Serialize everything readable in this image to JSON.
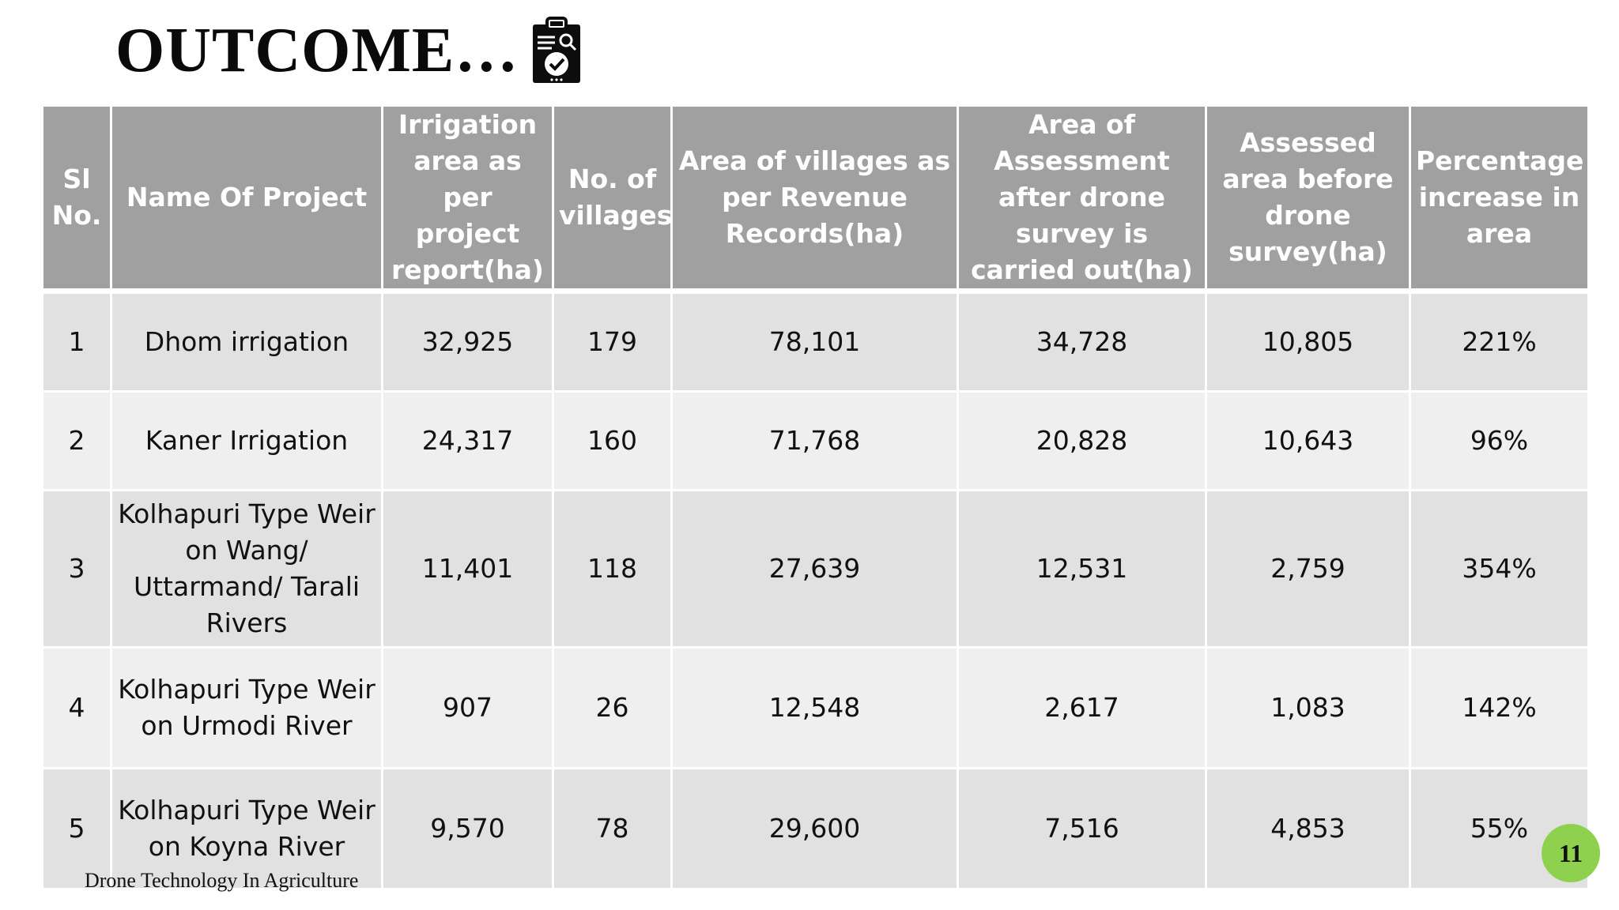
{
  "slide": {
    "title": "OUTCOME…",
    "title_icon": "clipboard-check-icon",
    "footer": "Drone Technology In Agriculture",
    "page_number": "11",
    "page_badge_color": "#8fd14f"
  },
  "table": {
    "header_color": "#a0a0a0",
    "headers": [
      "Sl No.",
      "Name Of Project",
      "Irrigation area as per project report(ha)",
      "No. of villages",
      "Area of villages as per Revenue Records(ha)",
      "Area of Assessment after drone survey is carried out(ha)",
      "Assessed area before drone survey(ha)",
      "Percentage increase in area"
    ],
    "rows": [
      [
        "1",
        "Dhom irrigation",
        "32,925",
        "179",
        "78,101",
        "34,728",
        "10,805",
        "221%"
      ],
      [
        "2",
        "Kaner Irrigation",
        "24,317",
        "160",
        "71,768",
        "20,828",
        "10,643",
        "96%"
      ],
      [
        "3",
        "Kolhapuri Type Weir on Wang/ Uttarmand/ Tarali Rivers",
        "11,401",
        "118",
        "27,639",
        "12,531",
        "2,759",
        "354%"
      ],
      [
        "4",
        "Kolhapuri Type Weir on Urmodi River",
        "907",
        "26",
        "12,548",
        "2,617",
        "1,083",
        "142%"
      ],
      [
        "5",
        "Kolhapuri Type Weir on Koyna River",
        "9,570",
        "78",
        "29,600",
        "7,516",
        "4,853",
        "55%"
      ]
    ]
  }
}
